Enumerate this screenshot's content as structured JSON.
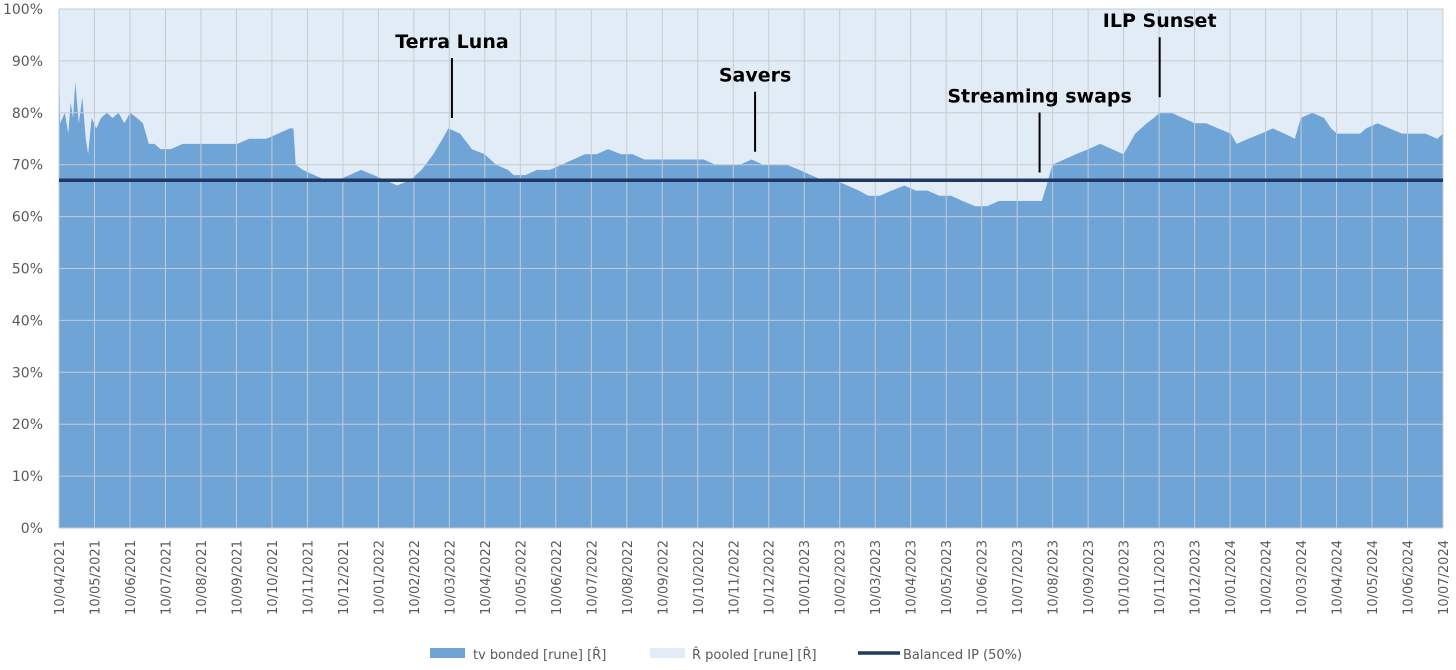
{
  "colors": {
    "plot_background": "#ffffff",
    "pooled": "#e2ecf7",
    "bonded": "#6fa4d7",
    "balanced_line": "#1f3864",
    "grid": "#c5cbd1",
    "text": "#595959"
  },
  "chart_data": {
    "type": "area",
    "stacked_to": 100,
    "x_start": "2021-04-10",
    "x_end": "2024-07-10",
    "x_tick_labels": [
      "10/04/2021",
      "10/05/2021",
      "10/06/2021",
      "10/07/2021",
      "10/08/2021",
      "10/09/2021",
      "10/10/2021",
      "10/11/2021",
      "10/12/2021",
      "10/01/2022",
      "10/02/2022",
      "10/03/2022",
      "10/04/2022",
      "10/05/2022",
      "10/06/2022",
      "10/07/2022",
      "10/08/2022",
      "10/09/2022",
      "10/10/2022",
      "10/11/2022",
      "10/12/2022",
      "10/01/2023",
      "10/02/2023",
      "10/03/2023",
      "10/04/2023",
      "10/05/2023",
      "10/06/2023",
      "10/07/2023",
      "10/08/2023",
      "10/09/2023",
      "10/10/2023",
      "10/11/2023",
      "10/12/2023",
      "10/01/2024",
      "10/02/2024",
      "10/03/2024",
      "10/04/2024",
      "10/05/2024",
      "10/06/2024",
      "10/07/2024"
    ],
    "y_tick_labels": [
      "0%",
      "10%",
      "20%",
      "30%",
      "40%",
      "50%",
      "60%",
      "70%",
      "80%",
      "90%",
      "100%"
    ],
    "ylim": [
      0,
      100
    ],
    "grid": true,
    "legend_position": "bottom",
    "series": [
      {
        "name": "tv bonded [rune] [R̂]",
        "kind": "area",
        "points": [
          [
            "2021-04-10",
            90
          ],
          [
            "2021-04-11",
            78
          ],
          [
            "2021-04-15",
            80
          ],
          [
            "2021-04-18",
            76
          ],
          [
            "2021-04-20",
            82
          ],
          [
            "2021-04-22",
            79
          ],
          [
            "2021-04-24",
            86
          ],
          [
            "2021-04-27",
            78
          ],
          [
            "2021-04-30",
            83
          ],
          [
            "2021-05-03",
            75
          ],
          [
            "2021-05-05",
            72
          ],
          [
            "2021-05-08",
            79
          ],
          [
            "2021-05-12",
            77
          ],
          [
            "2021-05-16",
            79
          ],
          [
            "2021-05-21",
            80
          ],
          [
            "2021-05-26",
            79
          ],
          [
            "2021-05-31",
            80
          ],
          [
            "2021-06-05",
            78
          ],
          [
            "2021-06-10",
            80
          ],
          [
            "2021-06-16",
            79
          ],
          [
            "2021-06-21",
            78
          ],
          [
            "2021-06-26",
            74
          ],
          [
            "2021-07-01",
            74
          ],
          [
            "2021-07-06",
            73
          ],
          [
            "2021-07-15",
            73
          ],
          [
            "2021-07-25",
            74
          ],
          [
            "2021-08-10",
            74
          ],
          [
            "2021-08-25",
            74
          ],
          [
            "2021-09-10",
            74
          ],
          [
            "2021-09-20",
            75
          ],
          [
            "2021-10-05",
            75
          ],
          [
            "2021-10-15",
            76
          ],
          [
            "2021-10-25",
            77
          ],
          [
            "2021-10-28",
            77
          ],
          [
            "2021-10-30",
            70
          ],
          [
            "2021-11-05",
            69
          ],
          [
            "2021-11-15",
            68
          ],
          [
            "2021-11-25",
            67
          ],
          [
            "2021-12-05",
            67
          ],
          [
            "2021-12-15",
            68
          ],
          [
            "2021-12-25",
            69
          ],
          [
            "2022-01-05",
            68
          ],
          [
            "2022-01-15",
            67
          ],
          [
            "2022-01-25",
            66
          ],
          [
            "2022-02-05",
            67
          ],
          [
            "2022-02-15",
            69
          ],
          [
            "2022-02-25",
            72
          ],
          [
            "2022-03-05",
            75
          ],
          [
            "2022-03-10",
            77
          ],
          [
            "2022-03-20",
            76
          ],
          [
            "2022-03-30",
            73
          ],
          [
            "2022-04-10",
            72
          ],
          [
            "2022-04-20",
            70
          ],
          [
            "2022-04-30",
            69
          ],
          [
            "2022-05-05",
            68
          ],
          [
            "2022-05-15",
            68
          ],
          [
            "2022-05-25",
            69
          ],
          [
            "2022-06-05",
            69
          ],
          [
            "2022-06-15",
            70
          ],
          [
            "2022-06-25",
            71
          ],
          [
            "2022-07-05",
            72
          ],
          [
            "2022-07-15",
            72
          ],
          [
            "2022-07-25",
            73
          ],
          [
            "2022-08-05",
            72
          ],
          [
            "2022-08-15",
            72
          ],
          [
            "2022-08-25",
            71
          ],
          [
            "2022-09-05",
            71
          ],
          [
            "2022-09-15",
            71
          ],
          [
            "2022-09-25",
            71
          ],
          [
            "2022-10-05",
            71
          ],
          [
            "2022-10-15",
            71
          ],
          [
            "2022-10-25",
            70
          ],
          [
            "2022-11-05",
            70
          ],
          [
            "2022-11-15",
            70
          ],
          [
            "2022-11-25",
            71
          ],
          [
            "2022-12-05",
            70
          ],
          [
            "2022-12-15",
            70
          ],
          [
            "2022-12-25",
            70
          ],
          [
            "2023-01-05",
            69
          ],
          [
            "2023-01-15",
            68
          ],
          [
            "2023-01-25",
            67
          ],
          [
            "2023-02-05",
            67
          ],
          [
            "2023-02-15",
            66
          ],
          [
            "2023-02-25",
            65
          ],
          [
            "2023-03-05",
            64
          ],
          [
            "2023-03-15",
            64
          ],
          [
            "2023-03-25",
            65
          ],
          [
            "2023-04-05",
            66
          ],
          [
            "2023-04-15",
            65
          ],
          [
            "2023-04-25",
            65
          ],
          [
            "2023-05-05",
            64
          ],
          [
            "2023-05-15",
            64
          ],
          [
            "2023-05-25",
            63
          ],
          [
            "2023-06-05",
            62
          ],
          [
            "2023-06-15",
            62
          ],
          [
            "2023-06-25",
            63
          ],
          [
            "2023-07-05",
            63
          ],
          [
            "2023-07-15",
            63
          ],
          [
            "2023-07-25",
            63
          ],
          [
            "2023-08-01",
            63
          ],
          [
            "2023-08-05",
            66
          ],
          [
            "2023-08-10",
            70
          ],
          [
            "2023-08-20",
            71
          ],
          [
            "2023-08-30",
            72
          ],
          [
            "2023-09-10",
            73
          ],
          [
            "2023-09-20",
            74
          ],
          [
            "2023-09-30",
            73
          ],
          [
            "2023-10-10",
            72
          ],
          [
            "2023-10-20",
            76
          ],
          [
            "2023-10-30",
            78
          ],
          [
            "2023-11-05",
            79
          ],
          [
            "2023-11-10",
            80
          ],
          [
            "2023-11-20",
            80
          ],
          [
            "2023-11-30",
            79
          ],
          [
            "2023-12-10",
            78
          ],
          [
            "2023-12-20",
            78
          ],
          [
            "2023-12-30",
            77
          ],
          [
            "2024-01-10",
            76
          ],
          [
            "2024-01-15",
            74
          ],
          [
            "2024-01-25",
            75
          ],
          [
            "2024-02-05",
            76
          ],
          [
            "2024-02-15",
            77
          ],
          [
            "2024-02-25",
            76
          ],
          [
            "2024-03-05",
            75
          ],
          [
            "2024-03-10",
            79
          ],
          [
            "2024-03-20",
            80
          ],
          [
            "2024-03-30",
            79
          ],
          [
            "2024-04-05",
            77
          ],
          [
            "2024-04-10",
            76
          ],
          [
            "2024-04-20",
            76
          ],
          [
            "2024-04-30",
            76
          ],
          [
            "2024-05-05",
            77
          ],
          [
            "2024-05-15",
            78
          ],
          [
            "2024-05-25",
            77
          ],
          [
            "2024-06-05",
            76
          ],
          [
            "2024-06-15",
            76
          ],
          [
            "2024-06-25",
            76
          ],
          [
            "2024-07-05",
            75
          ],
          [
            "2024-07-10",
            76
          ]
        ]
      },
      {
        "name": "R̂ pooled [rune] [R̂]",
        "kind": "area",
        "fills_to": 100
      },
      {
        "name": "Balanced IP (50%)",
        "kind": "line",
        "value": 67
      }
    ],
    "annotations": [
      {
        "text": "Terra Luna",
        "x": "2022-03-13",
        "y": 79
      },
      {
        "text": "Savers",
        "x": "2022-11-28",
        "y": 72.5
      },
      {
        "text": "Streaming swaps",
        "x": "2023-07-30",
        "y": 68.5
      },
      {
        "text": "ILP Sunset",
        "x": "2023-11-10",
        "y": 83
      }
    ]
  }
}
